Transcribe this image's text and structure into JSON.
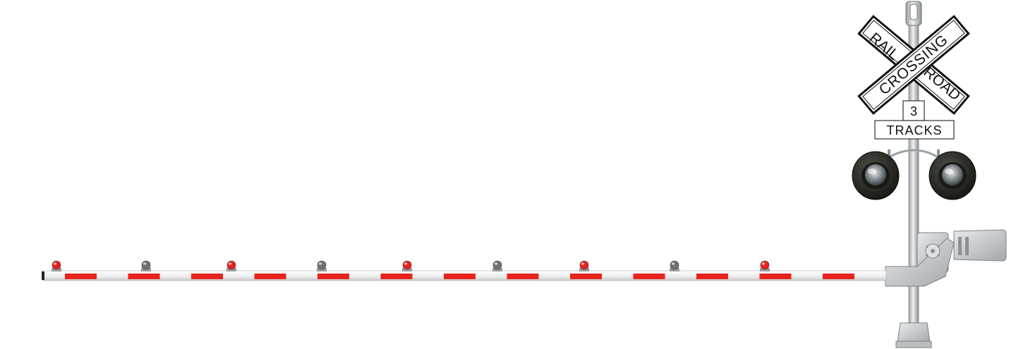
{
  "crossbuck": {
    "word_rail": "RAIL",
    "word_road": "ROAD",
    "word_crossing": "CROSSING"
  },
  "track_sign": {
    "count": "3",
    "label": "TRACKS"
  },
  "gate_arm": {
    "lamps": [
      "red",
      "gray",
      "red",
      "gray",
      "red",
      "gray",
      "red",
      "gray",
      "red"
    ],
    "stripe_color": "#e8231c",
    "base_color": "#f4f4f4"
  },
  "colors": {
    "red_lamp": "#e8231c",
    "gray_lamp": "#6c7478",
    "mast": "#c9cdd0",
    "signal_hood": "#2c2f2a"
  }
}
